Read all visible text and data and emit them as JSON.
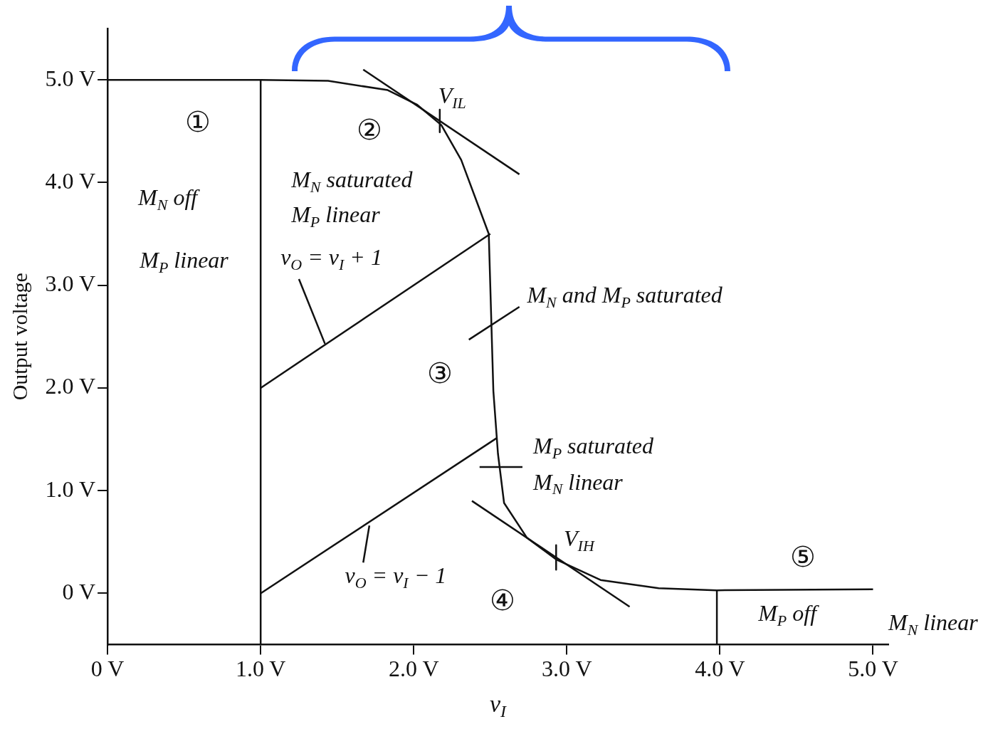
{
  "chart_data": {
    "type": "line",
    "xlabel": "v$_{I}$",
    "ylabel": "Output voltage",
    "xlim": [
      0,
      5.1
    ],
    "ylim": [
      -0.5,
      5.5
    ],
    "xticks": [
      {
        "value": 0,
        "label": "0 V"
      },
      {
        "value": 1,
        "label": "1.0 V"
      },
      {
        "value": 2,
        "label": "2.0 V"
      },
      {
        "value": 3,
        "label": "3.0 V"
      },
      {
        "value": 4,
        "label": "4.0 V"
      },
      {
        "value": 5,
        "label": "5.0 V"
      }
    ],
    "yticks": [
      {
        "value": 0,
        "label": "0 V"
      },
      {
        "value": 1,
        "label": "1.0 V"
      },
      {
        "value": 2,
        "label": "2.0 V"
      },
      {
        "value": 3,
        "label": "3.0 V"
      },
      {
        "value": 4,
        "label": "4.0 V"
      },
      {
        "value": 5,
        "label": "5.0 V"
      }
    ],
    "grid": false,
    "legend": false,
    "marker": "none",
    "line_style": "solid",
    "series": [
      {
        "color": "#111111",
        "x": [
          0,
          1.0,
          1.44,
          1.83,
          2.02,
          2.18,
          2.31,
          2.49,
          2.52,
          2.55,
          2.59,
          2.74,
          2.93,
          3.22,
          3.6,
          3.98,
          5.0
        ],
        "values": [
          5.0,
          5.0,
          4.99,
          4.9,
          4.76,
          4.56,
          4.22,
          3.5,
          1.97,
          1.36,
          0.88,
          0.54,
          0.33,
          0.13,
          0.05,
          0.03,
          0.04
        ]
      },
      {
        "color": "#111111",
        "x": [
          1.0,
          2.5
        ],
        "values": [
          2.0,
          3.5
        ]
      },
      {
        "color": "#111111",
        "x": [
          1.0,
          2.54
        ],
        "values": [
          0.0,
          1.51
        ]
      },
      {
        "color": "#111111",
        "x": [
          1.0,
          1.0
        ],
        "values": [
          -0.5,
          5.0
        ]
      },
      {
        "color": "#111111",
        "x": [
          3.98,
          3.98
        ],
        "values": [
          -0.5,
          0.03
        ]
      },
      {
        "color": "#111111",
        "x": [
          1.67,
          2.69
        ],
        "values": [
          5.1,
          4.08
        ]
      },
      {
        "color": "#111111",
        "x": [
          2.38,
          3.41
        ],
        "values": [
          0.9,
          -0.13
        ]
      },
      {
        "color": "#111111",
        "x": [
          2.17,
          2.17
        ],
        "values": [
          4.71,
          4.49
        ]
      },
      {
        "color": "#111111",
        "x": [
          2.93,
          2.93
        ],
        "values": [
          0.47,
          0.23
        ]
      },
      {
        "color": "#111111",
        "x": [
          2.43,
          2.71
        ],
        "values": [
          1.23,
          1.23
        ]
      },
      {
        "color": "#111111",
        "x": [
          1.25,
          1.42
        ],
        "values": [
          3.06,
          2.43
        ]
      },
      {
        "color": "#111111",
        "x": [
          2.36,
          2.69
        ],
        "values": [
          2.47,
          2.79
        ]
      },
      {
        "color": "#111111",
        "x": [
          1.71,
          1.67
        ],
        "values": [
          0.66,
          0.3
        ]
      }
    ],
    "annotations": [
      "①",
      "M$_{N}$ off",
      "M$_{P}$ linear",
      "②",
      "M$_{N}$ saturated",
      "M$_{P}$ linear",
      "v$_{O}$ = v$_{I}$ + 1",
      "M$_{N}$ and M$_{P}$ saturated",
      "③",
      "M$_{P}$ saturated",
      "M$_{N}$ linear",
      "V$_{IL}$",
      "V$_{IH}$",
      "v$_{O}$ = v$_{I}$ − 1",
      "④",
      "⑤",
      "M$_{P}$ off",
      "M$_{N}$ linear"
    ]
  }
}
